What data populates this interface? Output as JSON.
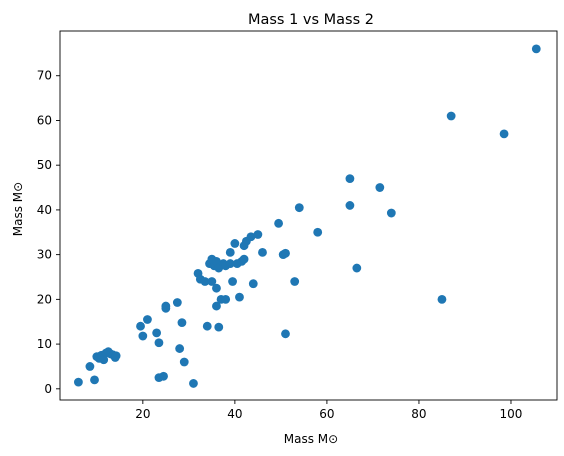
{
  "chart_data": {
    "type": "scatter",
    "title": "Mass 1 vs Mass 2",
    "xlabel": "Mass M⊙",
    "ylabel": "Mass M⊙",
    "xlim": [
      2.0,
      110.0
    ],
    "ylim": [
      -2.5,
      80.0
    ],
    "xticks": [
      20,
      40,
      60,
      80,
      100
    ],
    "yticks": [
      0,
      10,
      20,
      30,
      40,
      50,
      60,
      70
    ],
    "grid": false,
    "marker_color": "#1f77b4",
    "points": [
      {
        "x": 6.0,
        "y": 1.5
      },
      {
        "x": 8.5,
        "y": 5.0
      },
      {
        "x": 9.5,
        "y": 2.0
      },
      {
        "x": 10.0,
        "y": 7.2
      },
      {
        "x": 10.5,
        "y": 6.8
      },
      {
        "x": 11.0,
        "y": 7.5
      },
      {
        "x": 11.5,
        "y": 6.5
      },
      {
        "x": 12.0,
        "y": 8.0
      },
      {
        "x": 12.5,
        "y": 8.3
      },
      {
        "x": 13.0,
        "y": 7.8
      },
      {
        "x": 13.5,
        "y": 7.6
      },
      {
        "x": 14.0,
        "y": 7.0
      },
      {
        "x": 14.2,
        "y": 7.4
      },
      {
        "x": 19.5,
        "y": 14.0
      },
      {
        "x": 20.0,
        "y": 11.8
      },
      {
        "x": 21.0,
        "y": 15.5
      },
      {
        "x": 23.0,
        "y": 12.5
      },
      {
        "x": 23.5,
        "y": 10.3
      },
      {
        "x": 23.5,
        "y": 2.5
      },
      {
        "x": 24.5,
        "y": 2.8
      },
      {
        "x": 25.0,
        "y": 18.5
      },
      {
        "x": 25.0,
        "y": 18.0
      },
      {
        "x": 27.5,
        "y": 19.3
      },
      {
        "x": 28.0,
        "y": 9.0
      },
      {
        "x": 28.5,
        "y": 14.8
      },
      {
        "x": 29.0,
        "y": 6.0
      },
      {
        "x": 31.0,
        "y": 1.2
      },
      {
        "x": 32.0,
        "y": 25.8
      },
      {
        "x": 32.5,
        "y": 24.5
      },
      {
        "x": 33.5,
        "y": 24.0
      },
      {
        "x": 34.0,
        "y": 14.0
      },
      {
        "x": 34.5,
        "y": 28.0
      },
      {
        "x": 35.0,
        "y": 29.0
      },
      {
        "x": 35.0,
        "y": 24.0
      },
      {
        "x": 35.5,
        "y": 27.5
      },
      {
        "x": 36.0,
        "y": 28.5
      },
      {
        "x": 36.0,
        "y": 22.5
      },
      {
        "x": 36.0,
        "y": 18.5
      },
      {
        "x": 36.5,
        "y": 27.0
      },
      {
        "x": 36.5,
        "y": 13.8
      },
      {
        "x": 37.0,
        "y": 20.0
      },
      {
        "x": 37.5,
        "y": 28.0
      },
      {
        "x": 38.0,
        "y": 27.5
      },
      {
        "x": 38.0,
        "y": 20.0
      },
      {
        "x": 39.0,
        "y": 28.0
      },
      {
        "x": 39.0,
        "y": 30.5
      },
      {
        "x": 39.5,
        "y": 24.0
      },
      {
        "x": 40.0,
        "y": 32.5
      },
      {
        "x": 40.5,
        "y": 28.0
      },
      {
        "x": 41.0,
        "y": 20.5
      },
      {
        "x": 41.5,
        "y": 28.5
      },
      {
        "x": 42.0,
        "y": 32.0
      },
      {
        "x": 42.0,
        "y": 29.0
      },
      {
        "x": 42.5,
        "y": 33.0
      },
      {
        "x": 43.5,
        "y": 34.0
      },
      {
        "x": 44.0,
        "y": 23.5
      },
      {
        "x": 45.0,
        "y": 34.5
      },
      {
        "x": 46.0,
        "y": 30.5
      },
      {
        "x": 49.5,
        "y": 37.0
      },
      {
        "x": 50.5,
        "y": 30.0
      },
      {
        "x": 51.0,
        "y": 30.3
      },
      {
        "x": 51.0,
        "y": 12.3
      },
      {
        "x": 53.0,
        "y": 24.0
      },
      {
        "x": 54.0,
        "y": 40.5
      },
      {
        "x": 58.0,
        "y": 35.0
      },
      {
        "x": 65.0,
        "y": 47.0
      },
      {
        "x": 65.0,
        "y": 41.0
      },
      {
        "x": 66.5,
        "y": 27.0
      },
      {
        "x": 71.5,
        "y": 45.0
      },
      {
        "x": 74.0,
        "y": 39.3
      },
      {
        "x": 85.0,
        "y": 20.0
      },
      {
        "x": 87.0,
        "y": 61.0
      },
      {
        "x": 98.5,
        "y": 57.0
      },
      {
        "x": 105.5,
        "y": 76.0
      }
    ]
  }
}
